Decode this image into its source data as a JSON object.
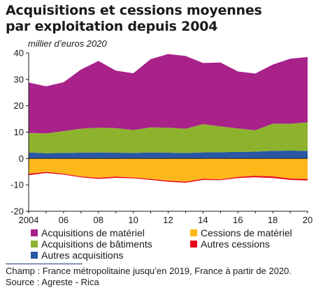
{
  "title_line1": "Acquisitions et cessions moyennes",
  "title_line2": "par exploitation depuis 2004",
  "unit_label": "millier d’euros 2020",
  "legend": [
    {
      "label": "Acquisitions de matériel",
      "color": "#a8228a"
    },
    {
      "label": "Cessions de matériel",
      "color": "#ffb81c"
    },
    {
      "label": "Acquisitions de bâtiments",
      "color": "#8db32e"
    },
    {
      "label": "Autres cessions",
      "color": "#e8001c"
    },
    {
      "label": "Autres acquisitions",
      "color": "#2957a4"
    }
  ],
  "note": "Champ : France métropolitaine jusqu’en 2019, France à partir de 2020.",
  "source": "Source : Agreste - Rica",
  "chart_data": {
    "type": "area",
    "x": [
      2004,
      2005,
      2006,
      2007,
      2008,
      2009,
      2010,
      2011,
      2012,
      2013,
      2014,
      2015,
      2016,
      2017,
      2018,
      2019,
      2020
    ],
    "xticks": [
      "2004",
      "06",
      "08",
      "10",
      "12",
      "14",
      "16",
      "18",
      "20"
    ],
    "xtick_years": [
      2004,
      2006,
      2008,
      2010,
      2012,
      2014,
      2016,
      2018,
      2020
    ],
    "ylim": [
      -20,
      40
    ],
    "yticks": [
      -20,
      -10,
      0,
      10,
      20,
      30,
      40
    ],
    "grid": false,
    "series_positive": [
      {
        "name": "Autres acquisitions",
        "color": "#2957a4",
        "values": [
          2.3,
          2.0,
          2.1,
          2.2,
          2.3,
          2.2,
          2.1,
          2.3,
          2.2,
          2.1,
          2.3,
          2.4,
          2.5,
          2.6,
          2.9,
          3.0,
          2.9
        ]
      },
      {
        "name": "Acquisitions de bâtiments",
        "color": "#8db32e",
        "values": [
          7.4,
          7.5,
          8.3,
          9.1,
          9.4,
          9.3,
          8.7,
          9.5,
          9.5,
          9.2,
          10.7,
          9.8,
          8.9,
          8.1,
          10.3,
          10.2,
          10.8
        ]
      },
      {
        "name": "Acquisitions de matériel",
        "color": "#a8228a",
        "values": [
          19.1,
          17.9,
          18.5,
          22.4,
          25.3,
          21.8,
          21.5,
          25.9,
          27.9,
          27.6,
          23.2,
          24.2,
          21.6,
          21.5,
          22.4,
          24.6,
          24.8
        ]
      }
    ],
    "series_negative": [
      {
        "name": "Cessions de matériel",
        "color": "#ffb81c",
        "values": [
          -5.8,
          -5.1,
          -5.8,
          -6.8,
          -7.3,
          -6.9,
          -7.2,
          -7.8,
          -8.4,
          -8.8,
          -7.7,
          -7.9,
          -7.0,
          -6.6,
          -6.8,
          -7.6,
          -7.8
        ]
      },
      {
        "name": "Autres cessions",
        "color": "#e8001c",
        "values": [
          -0.5,
          -0.4,
          -0.3,
          -0.3,
          -0.4,
          -0.4,
          -0.3,
          -0.3,
          -0.4,
          -0.4,
          -0.4,
          -0.3,
          -0.4,
          -0.5,
          -0.6,
          -0.5,
          -0.5
        ]
      }
    ]
  }
}
